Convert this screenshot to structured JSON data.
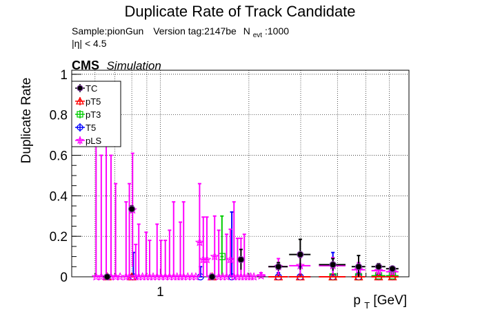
{
  "chart_data": {
    "type": "scatter",
    "title": "Duplicate Rate of Track Candidate",
    "info_sample": "Sample:pionGun",
    "info_version": "Version tag:2147be",
    "info_nevt_label": "N",
    "info_nevt_sub": "evt",
    "info_nevt_value": ":1000",
    "info_eta": "|η| < 4.5",
    "cms_label": "CMS",
    "cms_sublabel": "Simulation",
    "ylabel": "Duplicate Rate",
    "xlabel_main": "p",
    "xlabel_sub": "T",
    "xlabel_unit": " [GeV]",
    "xscale": "log",
    "xlim": [
      0.5,
      7.0
    ],
    "ylim": [
      0,
      1.02
    ],
    "yticks": [
      0,
      0.2,
      0.4,
      0.6,
      0.8,
      1
    ],
    "ytick_labels": [
      "0",
      "0.2",
      "0.4",
      "0.6",
      "0.8",
      "1"
    ],
    "xtick_labels": [
      {
        "value": 1,
        "label": "1"
      }
    ],
    "grid": true,
    "legend_position": "top-left",
    "series": [
      {
        "name": "TC",
        "color": "#000000",
        "marker": "filled-circle",
        "x": [
          0.66,
          0.8,
          1.5,
          1.88,
          2.52,
          2.99,
          3.86,
          4.72,
          5.52,
          6.15
        ],
        "xerr": [
          0.02,
          0.02,
          0.02,
          0.03,
          0.19,
          0.25,
          0.4,
          0.25,
          0.3,
          0.3
        ],
        "y": [
          0.0,
          0.335,
          0.0,
          0.085,
          0.05,
          0.11,
          0.06,
          0.05,
          0.05,
          0.04
        ],
        "yerr": [
          0.0,
          0.015,
          0.0,
          0.05,
          0.02,
          0.075,
          0.03,
          0.055,
          0.015,
          0.01
        ]
      },
      {
        "name": "pT5",
        "color": "#ff0000",
        "marker": "open-triangle",
        "x": [
          0.66,
          0.8,
          1.5,
          2.52,
          2.99,
          3.86,
          4.72,
          5.52,
          6.15
        ],
        "xerr": [
          0.02,
          0.02,
          0.02,
          0.19,
          0.25,
          0.4,
          0.25,
          0.3,
          0.3
        ],
        "y": [
          0.0,
          0.0,
          0.0,
          0.0,
          0.0,
          0.0,
          0.0,
          0.0,
          0.0
        ],
        "yerr": [
          0.0,
          0.0,
          0.0,
          0.0,
          0.0,
          0.0,
          0.0,
          0.0,
          0.0
        ]
      },
      {
        "name": "pT3",
        "color": "#00cc00",
        "marker": "open-square",
        "x": [
          1.62,
          3.86,
          4.72,
          5.52,
          6.15
        ],
        "xerr": [
          0.02,
          0.4,
          0.25,
          0.3,
          0.3
        ],
        "y": [
          0.1,
          0.0,
          0.0,
          0.005,
          0.005
        ],
        "yerr": [
          0.2,
          0.0,
          0.0,
          0.01,
          0.01
        ]
      },
      {
        "name": "T5",
        "color": "#0000ff",
        "marker": "open-circle",
        "x": [
          0.81,
          1.37,
          1.75,
          2.52,
          2.99,
          3.86,
          4.72,
          5.52,
          6.15
        ],
        "xerr": [
          0.02,
          0.02,
          0.02,
          0.19,
          0.25,
          0.4,
          0.25,
          0.3,
          0.3
        ],
        "y": [
          0.0,
          0.0,
          0.0,
          0.0,
          0.0,
          0.0,
          0.0,
          0.0,
          0.0
        ],
        "yerr": [
          0.12,
          0.05,
          0.32,
          0.02,
          0.05,
          0.12,
          0.02,
          0.01,
          0.01
        ]
      },
      {
        "name": "pLS",
        "color": "#ff00ff",
        "marker": "open-star",
        "x": [
          0.605,
          0.63,
          0.655,
          0.68,
          0.705,
          0.73,
          0.765,
          0.785,
          0.805,
          0.825,
          0.845,
          0.87,
          0.895,
          0.92,
          0.945,
          0.975,
          1.005,
          1.04,
          1.075,
          1.11,
          1.14,
          1.17,
          1.2,
          1.24,
          1.28,
          1.32,
          1.36,
          1.4,
          1.44,
          1.48,
          1.53,
          1.58,
          1.63,
          1.68,
          1.73,
          1.78,
          1.83,
          1.88,
          1.93,
          1.98,
          2.03,
          2.08,
          2.2,
          2.52,
          2.99,
          3.86,
          4.72,
          5.52,
          6.15
        ],
        "xerr": [
          0.01,
          0.01,
          0.01,
          0.01,
          0.01,
          0.01,
          0.01,
          0.01,
          0.01,
          0.01,
          0.01,
          0.01,
          0.01,
          0.01,
          0.01,
          0.01,
          0.015,
          0.015,
          0.015,
          0.015,
          0.015,
          0.015,
          0.015,
          0.02,
          0.02,
          0.02,
          0.02,
          0.02,
          0.02,
          0.02,
          0.02,
          0.02,
          0.02,
          0.02,
          0.02,
          0.02,
          0.02,
          0.02,
          0.02,
          0.02,
          0.02,
          0.02,
          0.08,
          0.19,
          0.25,
          0.4,
          0.25,
          0.3,
          0.3
        ],
        "y": [
          0.0,
          0.0,
          0.0,
          0.0,
          0.0,
          0.0,
          0.0,
          0.0,
          0.33,
          0.0,
          0.0,
          0.0,
          0.0,
          0.0,
          0.0,
          0.0,
          0.0,
          0.0,
          0.0,
          0.0,
          0.0,
          0.0,
          0.0,
          0.0,
          0.0,
          0.0,
          0.17,
          0.085,
          0.085,
          0.0,
          0.1,
          0.0,
          0.0,
          0.0,
          0.085,
          0.0,
          0.0,
          0.0,
          0.0,
          0.0,
          0.0,
          0.0,
          0.005,
          0.05,
          0.055,
          0.055,
          0.035,
          0.03,
          0.025
        ],
        "yerr": [
          0.84,
          0.6,
          0.84,
          0.6,
          0.46,
          0.0,
          0.37,
          0.46,
          0.28,
          0.16,
          0.26,
          0.0,
          0.22,
          0.18,
          0.0,
          0.26,
          0.18,
          0.18,
          0.23,
          0.37,
          0.0,
          0.27,
          0.37,
          0.0,
          0.0,
          0.0,
          0.29,
          0.21,
          0.21,
          0.0,
          0.2,
          0.23,
          0.0,
          0.21,
          0.15,
          0.37,
          0.19,
          0.19,
          0.21,
          0.0,
          0.0,
          0.0,
          0.015,
          0.04,
          0.04,
          0.04,
          0.035,
          0.02,
          0.015
        ]
      }
    ]
  }
}
